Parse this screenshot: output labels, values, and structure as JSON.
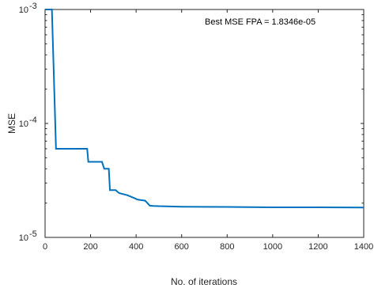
{
  "chart_data": {
    "type": "line",
    "xlabel": "No. of iterations",
    "ylabel": "MSE",
    "xlim": [
      0,
      1400
    ],
    "ylim": [
      1e-05,
      0.001
    ],
    "yscale": "log",
    "grid": false,
    "xticks": [
      0,
      200,
      400,
      600,
      800,
      1000,
      1200,
      1400
    ],
    "xtick_labels": [
      "0",
      "200",
      "400",
      "600",
      "800",
      "1000",
      "1200",
      "1400"
    ],
    "yticks": [
      1e-05,
      0.0001,
      0.001
    ],
    "ytick_labels": [
      {
        "base": "10",
        "exp": "-5"
      },
      {
        "base": "10",
        "exp": "-4"
      },
      {
        "base": "10",
        "exp": "-3"
      }
    ],
    "annotation": "Best MSE FPA = 1.8346e-05",
    "series": [
      {
        "color": "#0072BD",
        "x": [
          0,
          30,
          48,
          185,
          190,
          250,
          260,
          280,
          285,
          310,
          325,
          360,
          372,
          395,
          405,
          440,
          460,
          475,
          500,
          600,
          800,
          1000,
          1200,
          1400
        ],
        "y": [
          0.001,
          0.001,
          6e-05,
          6e-05,
          4.6e-05,
          4.6e-05,
          4e-05,
          4e-05,
          2.6e-05,
          2.6e-05,
          2.45e-05,
          2.35e-05,
          2.3e-05,
          2.2e-05,
          2.15e-05,
          2.1e-05,
          1.9e-05,
          1.89e-05,
          1.88e-05,
          1.86e-05,
          1.85e-05,
          1.835e-05,
          1.835e-05,
          1.83e-05
        ]
      }
    ]
  }
}
